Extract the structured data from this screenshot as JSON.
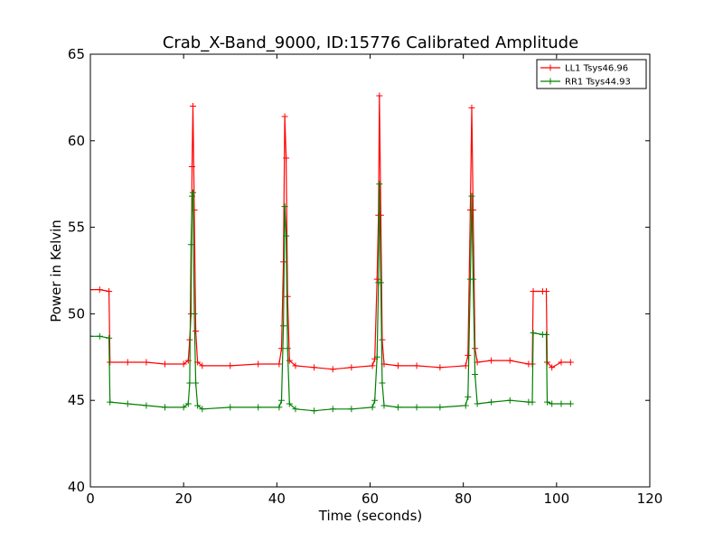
{
  "chart_data": {
    "type": "line",
    "title": "Crab_X-Band_9000, ID:15776 Calibrated Amplitude",
    "xlabel": "Time (seconds)",
    "ylabel": "Power in Kelvin",
    "xlim": [
      0,
      120
    ],
    "ylim": [
      40,
      65
    ],
    "xticks": [
      0,
      20,
      40,
      60,
      80,
      100,
      120
    ],
    "yticks": [
      40,
      45,
      50,
      55,
      60,
      65
    ],
    "grid": false,
    "legend_position": "top-right",
    "series": [
      {
        "name": "LL1 Tsys46.96",
        "color": "#ff0000",
        "marker": "+",
        "points": [
          [
            0.0,
            51.4
          ],
          [
            2.0,
            51.4
          ],
          [
            4.0,
            51.3
          ],
          [
            4.2,
            47.2
          ],
          [
            8.0,
            47.2
          ],
          [
            12.0,
            47.2
          ],
          [
            16.0,
            47.1
          ],
          [
            20.0,
            47.1
          ],
          [
            21.0,
            47.3
          ],
          [
            21.3,
            48.5
          ],
          [
            21.6,
            50.0
          ],
          [
            21.8,
            58.5
          ],
          [
            22.0,
            62.0
          ],
          [
            22.3,
            56.0
          ],
          [
            22.6,
            49.0
          ],
          [
            23.0,
            47.2
          ],
          [
            24.0,
            47.0
          ],
          [
            30.0,
            47.0
          ],
          [
            36.0,
            47.1
          ],
          [
            40.5,
            47.1
          ],
          [
            41.0,
            48.0
          ],
          [
            41.4,
            53.0
          ],
          [
            41.7,
            61.4
          ],
          [
            42.0,
            59.0
          ],
          [
            42.3,
            51.0
          ],
          [
            42.7,
            47.3
          ],
          [
            44.0,
            47.0
          ],
          [
            48.0,
            46.9
          ],
          [
            52.0,
            46.8
          ],
          [
            56.0,
            46.9
          ],
          [
            60.5,
            47.0
          ],
          [
            61.0,
            47.4
          ],
          [
            61.5,
            52.0
          ],
          [
            61.8,
            55.7
          ],
          [
            62.0,
            62.6
          ],
          [
            62.3,
            55.7
          ],
          [
            62.6,
            48.5
          ],
          [
            63.0,
            47.1
          ],
          [
            66.0,
            47.0
          ],
          [
            70.0,
            47.0
          ],
          [
            75.0,
            46.9
          ],
          [
            80.5,
            47.0
          ],
          [
            81.0,
            47.6
          ],
          [
            81.5,
            56.0
          ],
          [
            81.8,
            61.9
          ],
          [
            82.1,
            56.0
          ],
          [
            82.5,
            48.0
          ],
          [
            83.0,
            47.2
          ],
          [
            86.0,
            47.3
          ],
          [
            90.0,
            47.3
          ],
          [
            94.0,
            47.1
          ],
          [
            94.8,
            47.1
          ],
          [
            95.0,
            51.3
          ],
          [
            97.0,
            51.3
          ],
          [
            97.8,
            51.3
          ],
          [
            98.0,
            47.2
          ],
          [
            99.0,
            46.9
          ],
          [
            101.0,
            47.2
          ],
          [
            103.0,
            47.2
          ]
        ]
      },
      {
        "name": "RR1 Tsys44.93",
        "color": "#008000",
        "marker": "+",
        "points": [
          [
            0.0,
            48.7
          ],
          [
            2.0,
            48.7
          ],
          [
            4.0,
            48.6
          ],
          [
            4.2,
            44.9
          ],
          [
            8.0,
            44.8
          ],
          [
            12.0,
            44.7
          ],
          [
            16.0,
            44.6
          ],
          [
            20.0,
            44.6
          ],
          [
            21.0,
            44.8
          ],
          [
            21.3,
            46.0
          ],
          [
            21.6,
            54.0
          ],
          [
            21.8,
            56.8
          ],
          [
            22.0,
            57.0
          ],
          [
            22.3,
            50.0
          ],
          [
            22.6,
            46.0
          ],
          [
            23.0,
            44.7
          ],
          [
            24.0,
            44.5
          ],
          [
            30.0,
            44.6
          ],
          [
            36.0,
            44.6
          ],
          [
            40.5,
            44.6
          ],
          [
            41.0,
            45.0
          ],
          [
            41.4,
            49.3
          ],
          [
            41.7,
            56.2
          ],
          [
            42.0,
            54.5
          ],
          [
            42.3,
            48.0
          ],
          [
            42.7,
            44.8
          ],
          [
            44.0,
            44.5
          ],
          [
            48.0,
            44.4
          ],
          [
            52.0,
            44.5
          ],
          [
            56.0,
            44.5
          ],
          [
            60.5,
            44.6
          ],
          [
            61.0,
            45.0
          ],
          [
            61.5,
            47.5
          ],
          [
            61.8,
            51.8
          ],
          [
            62.0,
            57.5
          ],
          [
            62.3,
            51.8
          ],
          [
            62.6,
            46.0
          ],
          [
            63.0,
            44.7
          ],
          [
            66.0,
            44.6
          ],
          [
            70.0,
            44.6
          ],
          [
            75.0,
            44.6
          ],
          [
            80.5,
            44.7
          ],
          [
            81.0,
            45.2
          ],
          [
            81.5,
            52.0
          ],
          [
            81.8,
            56.8
          ],
          [
            82.1,
            52.0
          ],
          [
            82.5,
            46.5
          ],
          [
            83.0,
            44.8
          ],
          [
            86.0,
            44.9
          ],
          [
            90.0,
            45.0
          ],
          [
            94.0,
            44.9
          ],
          [
            94.8,
            44.9
          ],
          [
            95.0,
            48.9
          ],
          [
            97.0,
            48.8
          ],
          [
            97.8,
            48.8
          ],
          [
            98.0,
            44.9
          ],
          [
            99.0,
            44.8
          ],
          [
            101.0,
            44.8
          ],
          [
            103.0,
            44.8
          ]
        ]
      }
    ]
  }
}
